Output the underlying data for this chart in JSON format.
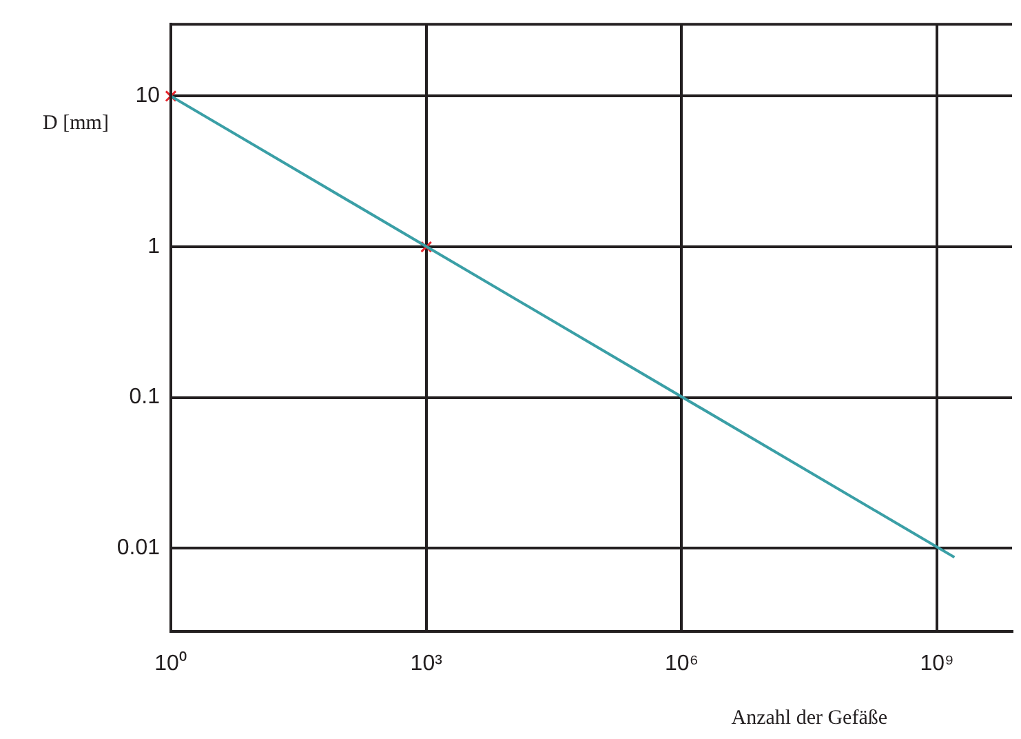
{
  "chart_data": {
    "type": "line",
    "xlabel": "Anzahl der Gefäße",
    "ylabel": "D [mm]",
    "log": "xy",
    "grid": true,
    "legend": false,
    "xlim": [
      1,
      7600000000
    ],
    "ylim": [
      0.0028,
      30
    ],
    "xticks": [
      {
        "value": 1,
        "label": "10⁰"
      },
      {
        "value": 1000,
        "label": "10³"
      },
      {
        "value": 1000000,
        "label": "10⁶"
      },
      {
        "value": 1000000000,
        "label": "10⁹"
      }
    ],
    "yticks": [
      0.01,
      0.1,
      1,
      10
    ],
    "series": [
      {
        "color": "#3a9fa6",
        "x": [
          1,
          1600000000
        ],
        "values": [
          10,
          0.0087
        ],
        "marker": "none"
      },
      {
        "type": "scatter",
        "color": "#e8262d",
        "x": [
          1,
          1000
        ],
        "values": [
          10,
          1
        ],
        "marker": "cross"
      }
    ]
  }
}
